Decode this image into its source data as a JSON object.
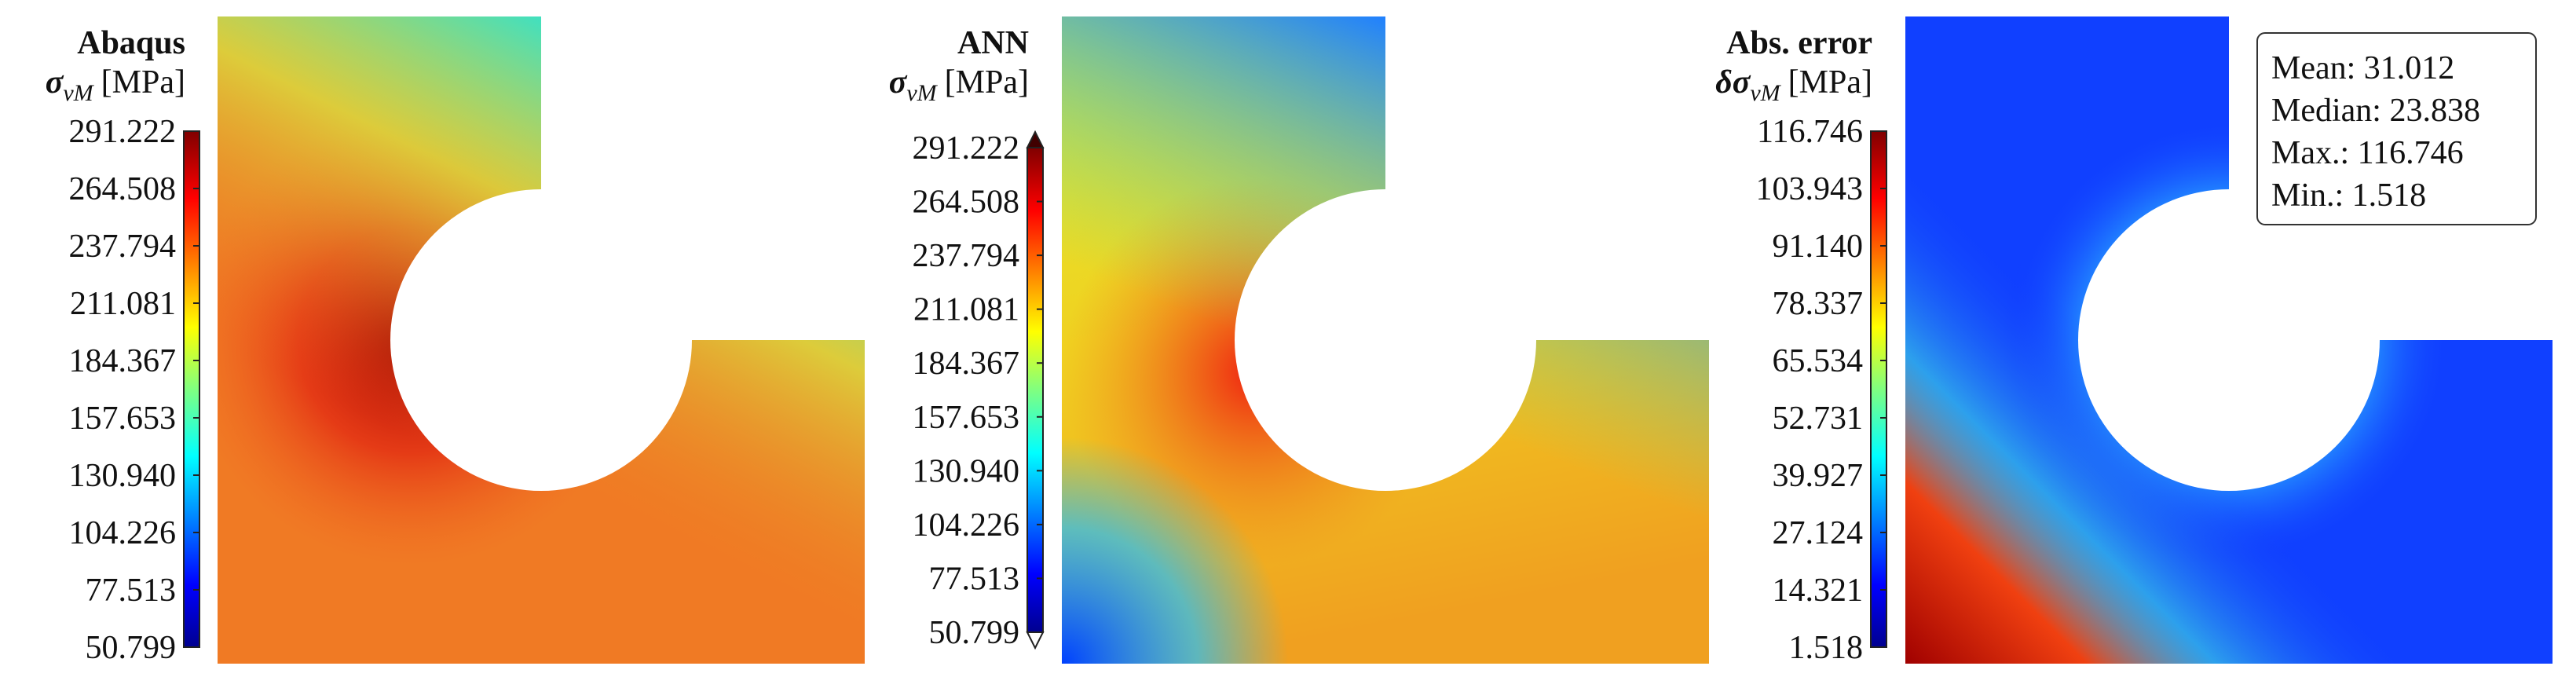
{
  "panels": [
    {
      "title": "Abaqus",
      "symbol": "σ",
      "subscript": "vM",
      "unit": "[MPa]",
      "ticks": [
        "291.222",
        "264.508",
        "237.794",
        "211.081",
        "184.367",
        "157.653",
        "130.940",
        "104.226",
        "77.513",
        "50.799"
      ]
    },
    {
      "title": "ANN",
      "symbol": "σ",
      "subscript": "vM",
      "unit": "[MPa]",
      "ticks": [
        "291.222",
        "264.508",
        "237.794",
        "211.081",
        "184.367",
        "157.653",
        "130.940",
        "104.226",
        "77.513",
        "50.799"
      ]
    },
    {
      "title": "Abs. error",
      "symbol": "δσ",
      "subscript": "vM",
      "unit": "[MPa]",
      "ticks": [
        "116.746",
        "103.943",
        "91.140",
        "78.337",
        "65.534",
        "52.731",
        "39.927",
        "27.124",
        "14.321",
        "1.518"
      ]
    }
  ],
  "stats": [
    "Mean: 31.012",
    "Median: 23.838",
    "Max.: 116.746",
    "Min.: 1.518"
  ]
}
